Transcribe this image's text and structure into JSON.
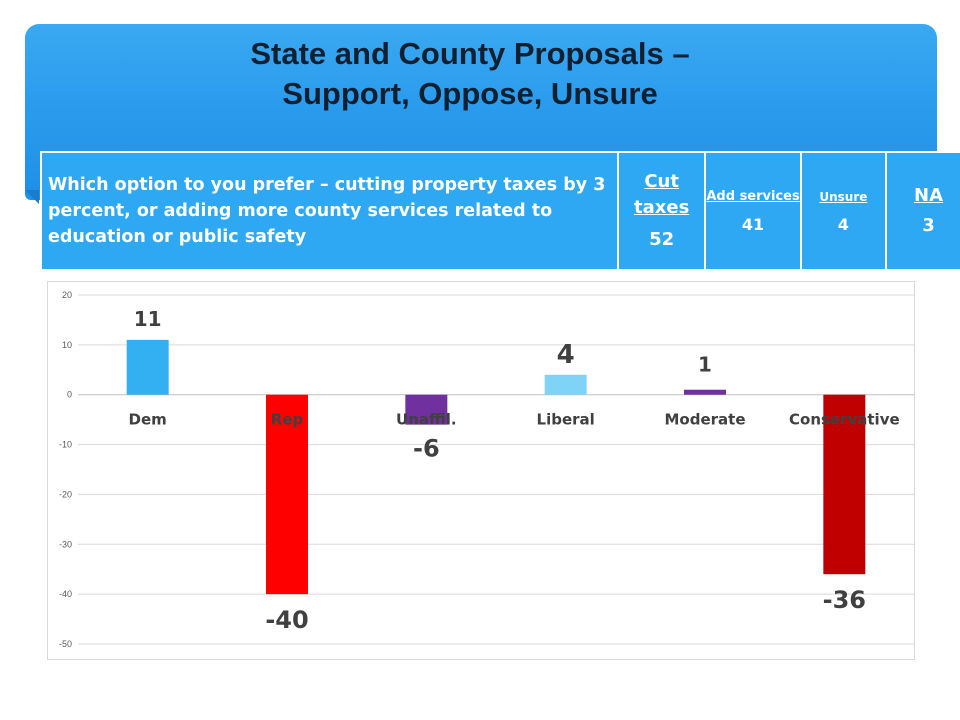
{
  "title_line1": "State and County Proposals –",
  "title_line2": "Support, Oppose, Unsure",
  "question": {
    "text": "Which option to you prefer – cutting property taxes by 3 percent, or adding more county services related to education or public safety",
    "options": [
      {
        "label": "Cut taxes",
        "value": "52"
      },
      {
        "label": "Add services",
        "value": "41"
      },
      {
        "label": "Unsure",
        "value": "4"
      },
      {
        "label": "NA",
        "value": "3"
      }
    ]
  },
  "chart_data": {
    "type": "bar",
    "categories": [
      "Dem",
      "Rep",
      "Unaffil.",
      "Liberal",
      "Moderate",
      "Conservative"
    ],
    "values": [
      11,
      -40,
      -6,
      4,
      1,
      -36
    ],
    "data_labels": [
      "11",
      "-40",
      "-6",
      "4",
      "1",
      "-36"
    ],
    "colors": [
      "#33b0f2",
      "#ff0000",
      "#7030a0",
      "#7fd3f7",
      "#7030a0",
      "#c00000"
    ],
    "ylim": [
      -50,
      20
    ],
    "yticks": [
      20,
      10,
      0,
      -10,
      -20,
      -30,
      -40,
      -50
    ],
    "title": "",
    "xlabel": "",
    "ylabel": "",
    "grid": true,
    "legend": "none"
  }
}
